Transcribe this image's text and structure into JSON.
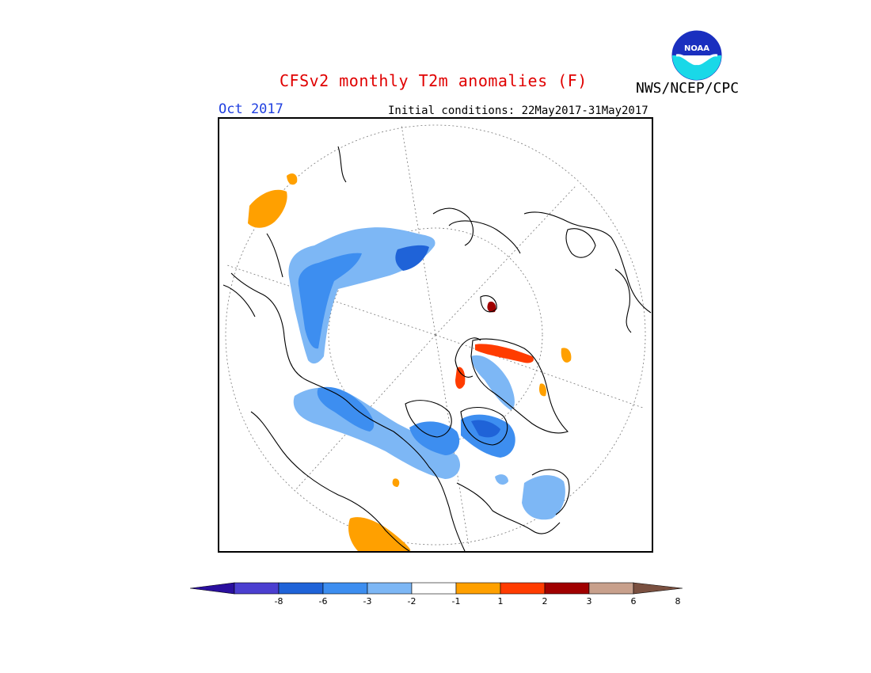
{
  "header": {
    "title": "CFSv2 monthly T2m anomalies (F)",
    "organization": "NWS/NCEP/CPC",
    "logo_text": "NOAA",
    "month": "Oct 2017",
    "initial_conditions": "Initial conditions: 22May2017-31May2017"
  },
  "colorbar": {
    "labels": [
      "-8",
      "-6",
      "-3",
      "-2",
      "-1",
      "1",
      "2",
      "3",
      "6",
      "8"
    ],
    "colors": [
      "#2a0f9e",
      "#4b3fd0",
      "#1f63d8",
      "#3d8ef0",
      "#7db7f5",
      "#ffffff",
      "#ffa000",
      "#ff3c00",
      "#a00000",
      "#c8a08c",
      "#7a5040"
    ]
  },
  "colors": {
    "title": "#e00000",
    "month": "#1f3fe0",
    "land": "#000000"
  }
}
